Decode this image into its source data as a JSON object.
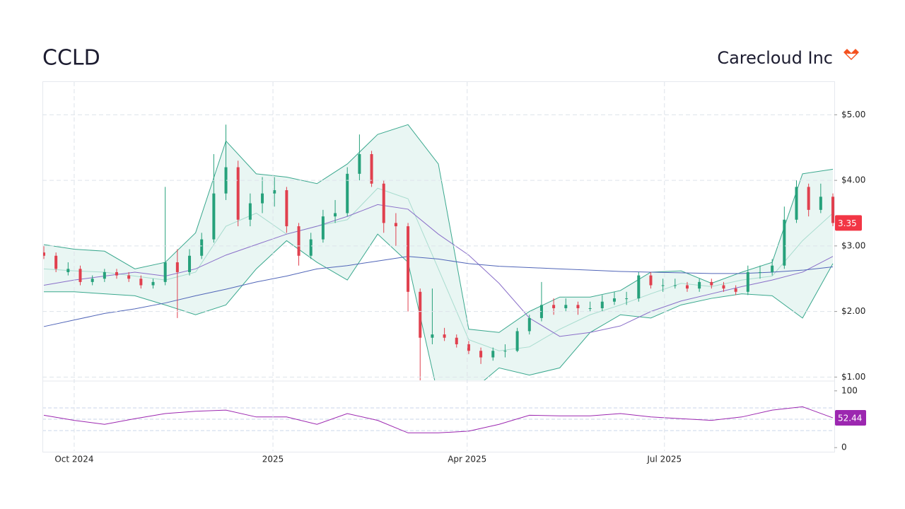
{
  "chart_data": [
    {
      "type": "candlestick",
      "title": "CCLD",
      "subtitle": "Carecloud Inc",
      "up_color": "#26a17b",
      "down_color": "#e0404e",
      "grid": true,
      "xlim": [
        0,
        260
      ],
      "xticks": [
        {
          "value": 10,
          "label": "Oct 2024"
        },
        {
          "value": 75.5,
          "label": "2025"
        },
        {
          "value": 139.5,
          "label": "Apr 2025"
        },
        {
          "value": 204.5,
          "label": "Jul 2025"
        }
      ],
      "ylim": [
        0.95,
        5.5
      ],
      "yticks": [
        {
          "value": 1,
          "label": "$1.00"
        },
        {
          "value": 2,
          "label": "$2.00"
        },
        {
          "value": 3,
          "label": "$3.00"
        },
        {
          "value": 4,
          "label": "$4.00"
        },
        {
          "value": 5,
          "label": "$5.00"
        }
      ],
      "last_price": 3.35,
      "last_price_color": "#f23645",
      "candle_x": [
        0,
        4,
        8,
        12,
        16,
        20,
        24,
        28,
        32,
        36,
        40,
        44,
        48,
        52,
        56,
        60,
        64,
        68,
        72,
        76,
        80,
        84,
        88,
        92,
        96,
        100,
        104,
        108,
        112,
        116,
        120,
        124,
        128,
        132,
        136,
        140,
        144,
        148,
        152,
        156,
        160,
        164,
        168,
        172,
        176,
        180,
        184,
        188,
        192,
        196,
        200,
        204,
        208,
        212,
        216,
        220,
        224,
        228,
        232,
        236,
        240,
        244,
        248,
        252,
        256,
        260
      ],
      "candles": [
        [
          2.9,
          3.0,
          2.8,
          2.85
        ],
        [
          2.85,
          2.9,
          2.6,
          2.65
        ],
        [
          2.6,
          2.75,
          2.55,
          2.65
        ],
        [
          2.65,
          2.7,
          2.4,
          2.45
        ],
        [
          2.45,
          2.55,
          2.4,
          2.5
        ],
        [
          2.5,
          2.65,
          2.45,
          2.6
        ],
        [
          2.6,
          2.65,
          2.5,
          2.55
        ],
        [
          2.55,
          2.6,
          2.45,
          2.5
        ],
        [
          2.5,
          2.55,
          2.35,
          2.4
        ],
        [
          2.4,
          2.5,
          2.35,
          2.45
        ],
        [
          2.45,
          3.9,
          2.4,
          2.75
        ],
        [
          2.75,
          2.95,
          1.9,
          2.6
        ],
        [
          2.6,
          2.95,
          2.55,
          2.85
        ],
        [
          2.85,
          3.2,
          2.8,
          3.1
        ],
        [
          3.1,
          4.4,
          3.05,
          3.8
        ],
        [
          3.8,
          4.85,
          3.7,
          4.2
        ],
        [
          4.2,
          4.3,
          3.3,
          3.4
        ],
        [
          3.4,
          3.8,
          3.3,
          3.65
        ],
        [
          3.65,
          4.05,
          3.5,
          3.8
        ],
        [
          3.8,
          4.05,
          3.6,
          3.85
        ],
        [
          3.85,
          3.9,
          3.2,
          3.3
        ],
        [
          3.3,
          3.35,
          2.7,
          2.85
        ],
        [
          2.85,
          3.2,
          2.8,
          3.1
        ],
        [
          3.1,
          3.55,
          3.05,
          3.45
        ],
        [
          3.45,
          3.7,
          3.35,
          3.5
        ],
        [
          3.5,
          4.2,
          3.45,
          4.1
        ],
        [
          4.1,
          4.7,
          4.0,
          4.4
        ],
        [
          4.4,
          4.45,
          3.9,
          3.95
        ],
        [
          3.95,
          4.0,
          3.2,
          3.35
        ],
        [
          3.35,
          3.5,
          3.0,
          3.3
        ],
        [
          3.3,
          3.35,
          2.0,
          2.3
        ],
        [
          2.3,
          2.35,
          0.95,
          1.6
        ],
        [
          1.6,
          2.35,
          1.5,
          1.65
        ],
        [
          1.65,
          1.75,
          1.55,
          1.6
        ],
        [
          1.6,
          1.65,
          1.45,
          1.5
        ],
        [
          1.5,
          1.55,
          1.35,
          1.4
        ],
        [
          1.4,
          1.45,
          1.2,
          1.3
        ],
        [
          1.3,
          1.45,
          1.25,
          1.4
        ],
        [
          1.4,
          1.5,
          1.3,
          1.4
        ],
        [
          1.4,
          1.75,
          1.38,
          1.7
        ],
        [
          1.7,
          1.95,
          1.65,
          1.9
        ],
        [
          1.9,
          2.45,
          1.85,
          2.1
        ],
        [
          2.1,
          2.2,
          1.95,
          2.05
        ],
        [
          2.05,
          2.2,
          2.0,
          2.1
        ],
        [
          2.1,
          2.15,
          1.95,
          2.05
        ],
        [
          2.05,
          2.15,
          2.0,
          2.05
        ],
        [
          2.05,
          2.25,
          2.0,
          2.15
        ],
        [
          2.15,
          2.3,
          2.1,
          2.2
        ],
        [
          2.2,
          2.3,
          2.1,
          2.2
        ],
        [
          2.2,
          2.6,
          2.15,
          2.55
        ],
        [
          2.55,
          2.6,
          2.35,
          2.4
        ],
        [
          2.4,
          2.5,
          2.3,
          2.4
        ],
        [
          2.4,
          2.5,
          2.35,
          2.4
        ],
        [
          2.4,
          2.45,
          2.3,
          2.35
        ],
        [
          2.35,
          2.5,
          2.3,
          2.45
        ],
        [
          2.45,
          2.5,
          2.35,
          2.4
        ],
        [
          2.4,
          2.45,
          2.3,
          2.35
        ],
        [
          2.35,
          2.4,
          2.25,
          2.3
        ],
        [
          2.3,
          2.7,
          2.25,
          2.6
        ],
        [
          2.6,
          2.7,
          2.5,
          2.6
        ],
        [
          2.6,
          2.8,
          2.55,
          2.7
        ],
        [
          2.7,
          3.6,
          2.65,
          3.4
        ],
        [
          3.4,
          4.0,
          3.35,
          3.9
        ],
        [
          3.9,
          3.95,
          3.45,
          3.55
        ],
        [
          3.55,
          3.95,
          3.5,
          3.75
        ],
        [
          3.75,
          3.8,
          3.3,
          3.35
        ]
      ],
      "line_x": [
        0,
        10,
        20,
        30,
        40,
        50,
        60,
        70,
        80,
        90,
        100,
        110,
        120,
        130,
        140,
        150,
        160,
        170,
        180,
        190,
        200,
        210,
        220,
        230,
        240,
        250,
        260
      ],
      "band_fill": "#dff2ee",
      "series": [
        {
          "color": "#3aa88e",
          "values": [
            3.02,
            2.95,
            2.92,
            2.65,
            2.75,
            3.2,
            4.6,
            4.1,
            4.05,
            3.95,
            4.25,
            4.7,
            4.85,
            4.25,
            1.73,
            1.68,
            2.0,
            2.22,
            2.22,
            2.32,
            2.6,
            2.62,
            2.43,
            2.6,
            2.75,
            4.1,
            4.17
          ]
        },
        {
          "color": "#3aa88e",
          "values": [
            2.3,
            2.3,
            2.27,
            2.24,
            2.1,
            1.95,
            2.1,
            2.65,
            3.08,
            2.75,
            2.48,
            3.18,
            2.75,
            0.7,
            0.75,
            1.14,
            1.03,
            1.14,
            1.68,
            1.95,
            1.9,
            2.1,
            2.2,
            2.27,
            2.24,
            1.9,
            2.73
          ]
        },
        {
          "color": "#a8dccf",
          "values": [
            2.65,
            2.62,
            2.6,
            2.54,
            2.48,
            2.6,
            3.3,
            3.5,
            3.18,
            3.3,
            3.4,
            3.88,
            3.72,
            2.65,
            1.57,
            1.4,
            1.46,
            1.73,
            1.95,
            2.1,
            2.27,
            2.43,
            2.38,
            2.48,
            2.54,
            3.08,
            3.5
          ]
        },
        {
          "color": "#8a6fc9",
          "values": [
            2.4,
            2.48,
            2.54,
            2.6,
            2.54,
            2.65,
            2.86,
            3.02,
            3.18,
            3.3,
            3.45,
            3.63,
            3.56,
            3.18,
            2.86,
            2.43,
            1.9,
            1.62,
            1.68,
            1.78,
            2.0,
            2.16,
            2.27,
            2.38,
            2.48,
            2.6,
            2.84
          ]
        },
        {
          "color": "#5065b8",
          "values": [
            1.77,
            1.87,
            1.97,
            2.04,
            2.13,
            2.24,
            2.34,
            2.45,
            2.54,
            2.65,
            2.7,
            2.77,
            2.84,
            2.8,
            2.73,
            2.69,
            2.67,
            2.65,
            2.63,
            2.61,
            2.6,
            2.59,
            2.58,
            2.58,
            2.6,
            2.63,
            2.68
          ]
        }
      ]
    },
    {
      "type": "line",
      "color": "#9c27b0",
      "xlim": [
        0,
        260
      ],
      "ylim": [
        -6,
        116
      ],
      "yticks": [
        0,
        100
      ],
      "levels": [
        30,
        50,
        70
      ],
      "x": [
        0,
        10,
        20,
        30,
        40,
        50,
        60,
        70,
        80,
        90,
        100,
        110,
        120,
        130,
        140,
        150,
        160,
        170,
        180,
        190,
        200,
        210,
        220,
        230,
        240,
        250,
        260
      ],
      "values": [
        57,
        48,
        41,
        51,
        60,
        64,
        66,
        54,
        54,
        41,
        60,
        48,
        26,
        26,
        29,
        41,
        57,
        56,
        56,
        60,
        54,
        51,
        48,
        54,
        66,
        72,
        52.44
      ],
      "last_value": 52.44
    }
  ]
}
